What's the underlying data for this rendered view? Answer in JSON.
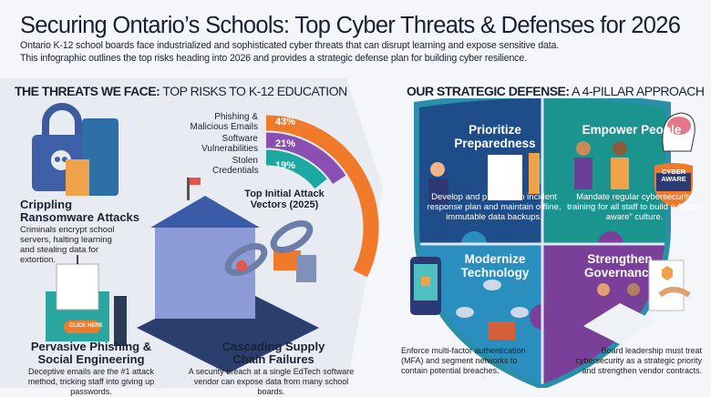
{
  "header": {
    "title": "Securing Ontario’s Schools: Top Cyber Threats & Defenses for 2026",
    "subtitle_1": "Ontario K-12 school boards face industrialized and sophisticated cyber threats that can disrupt learning and expose sensitive data.",
    "subtitle_2": "This infographic outlines the top risks heading into 2026 and provides a strategic defense plan for building cyber resilience."
  },
  "threats": {
    "heading_bold": "THE THREATS WE FACE:",
    "heading_rest": " TOP RISKS TO K-12 EDUCATION",
    "items": [
      {
        "title": "Crippling Ransomware Attacks",
        "text": "Criminals encrypt school servers, halting learning and stealing data for extortion."
      },
      {
        "title": "Pervasive Phishing & Social Engineering",
        "text": "Deceptive emails are the #1 attack method, tricking staff into giving up passwords.",
        "button": "CLICK HERE"
      },
      {
        "title": "Cascading Supply Chain Failures",
        "text": "A security breach at a single EdTech software vendor can expose data from many school boards."
      }
    ]
  },
  "chart_data": {
    "type": "radial-bar",
    "title": "Top Initial Attack Vectors (2025)",
    "categories": [
      "Phishing & Malicious Emails",
      "Software Vulnerabilities",
      "Stolen Credentials"
    ],
    "values": [
      43,
      21,
      19
    ],
    "labels": [
      "43%",
      "21%",
      "19%"
    ],
    "colors": [
      "#f07a2a",
      "#8a4fb0",
      "#1aa8a0"
    ]
  },
  "defense": {
    "heading_bold": "OUR STRATEGIC DEFENSE:",
    "heading_rest": " A 4-PILLAR APPROACH",
    "badge": "CYBER AWARE",
    "pillars": [
      {
        "title": "Prioritize Preparedness",
        "text": "Develop and practice an incident response plan and maintain offline, immutable data backups.",
        "color": "#1f4d8a"
      },
      {
        "title": "Empower People",
        "text": "Mandate regular cybersecurity training for all staff to build a “cyber aware” culture.",
        "color": "#1b948f"
      },
      {
        "title": "Modernize Technology",
        "text": "Enforce multi-factor authentication (MFA) and segment networks to contain potential breaches.",
        "color": "#2a8fbf"
      },
      {
        "title": "Strengthen Governance",
        "text": "Board leadership must treat cybersecurity as a strategic priority and strengthen vendor contracts.",
        "color": "#7a3f98"
      }
    ]
  }
}
